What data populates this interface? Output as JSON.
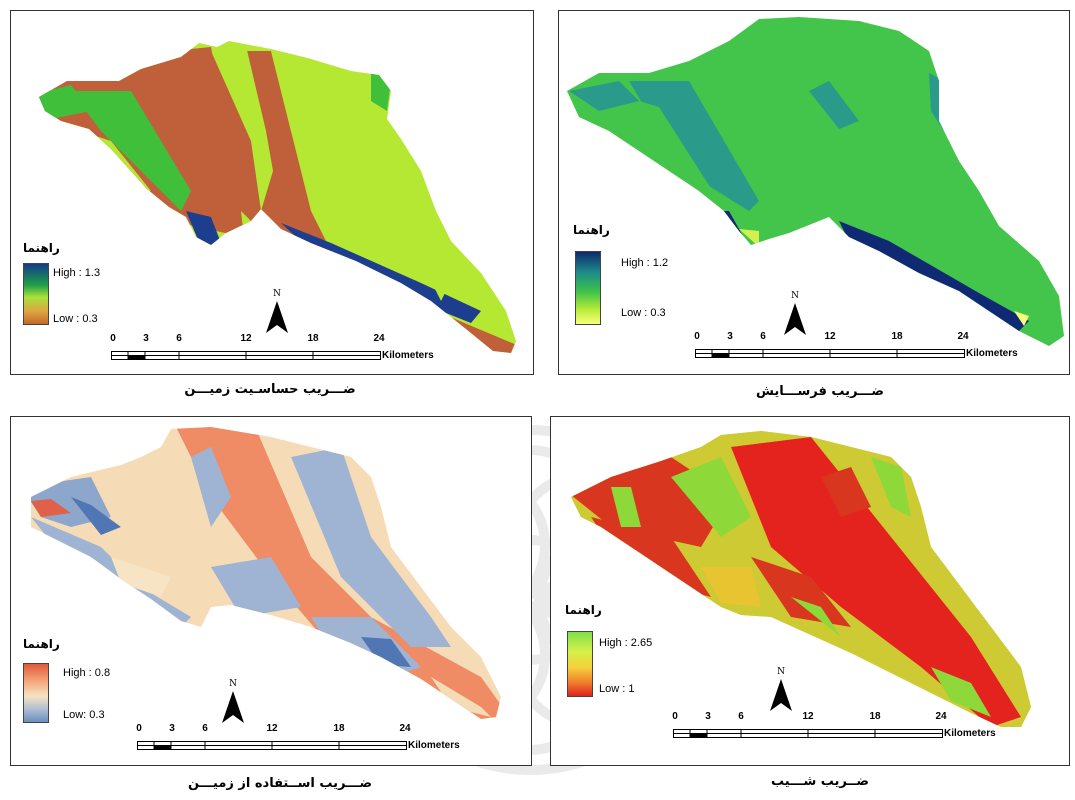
{
  "panels": [
    {
      "id": "sensitivity",
      "caption": "ضـــریب حساسـیت زمیـــن",
      "legend": {
        "title": "راهنما",
        "high": "High : 1.3",
        "low": "Low : 0.3",
        "colors": [
          "#123c8a",
          "#1f9e47",
          "#a8e23a",
          "#e0a040",
          "#c06a2a"
        ]
      },
      "north_label": "N",
      "scale": {
        "ticks": [
          "0",
          "3",
          "6",
          "12",
          "18",
          "24"
        ],
        "units": "Kilometers"
      }
    },
    {
      "id": "erosion",
      "caption": "ضـــریب  فرســـایش",
      "legend": {
        "title": "راهنما",
        "high": "High : 1.2",
        "low": "Low : 0.3",
        "colors": [
          "#0d2a6e",
          "#1d8a8a",
          "#3dc24a",
          "#b8ec3a",
          "#f6ff7a"
        ]
      },
      "north_label": "N",
      "scale": {
        "ticks": [
          "0",
          "3",
          "6",
          "12",
          "18",
          "24"
        ],
        "units": "Kilometers"
      }
    },
    {
      "id": "landuse",
      "caption": "ضـــریب   اســتفاده از زمیـــن",
      "legend": {
        "title": "راهنما",
        "high": "High : 0.8",
        "low": "Low: 0.3",
        "colors": [
          "#e05a3a",
          "#f4a77a",
          "#f6e4c4",
          "#a9b9d4",
          "#6d8fbe"
        ]
      },
      "north_label": "N",
      "scale": {
        "ticks": [
          "0",
          "3",
          "6",
          "12",
          "18",
          "24"
        ],
        "units": "Kilometers"
      }
    },
    {
      "id": "slope",
      "caption": "ضــریب شـــیب",
      "legend": {
        "title": "راهنما",
        "high": "High : 2.65",
        "low": "Low : 1",
        "colors": [
          "#7ee04a",
          "#d6f04a",
          "#f5d23a",
          "#f07a2a",
          "#e0201e"
        ]
      },
      "north_label": "N",
      "scale": {
        "ticks": [
          "0",
          "3",
          "6",
          "12",
          "18",
          "24"
        ],
        "units": "Kilometers"
      }
    }
  ]
}
